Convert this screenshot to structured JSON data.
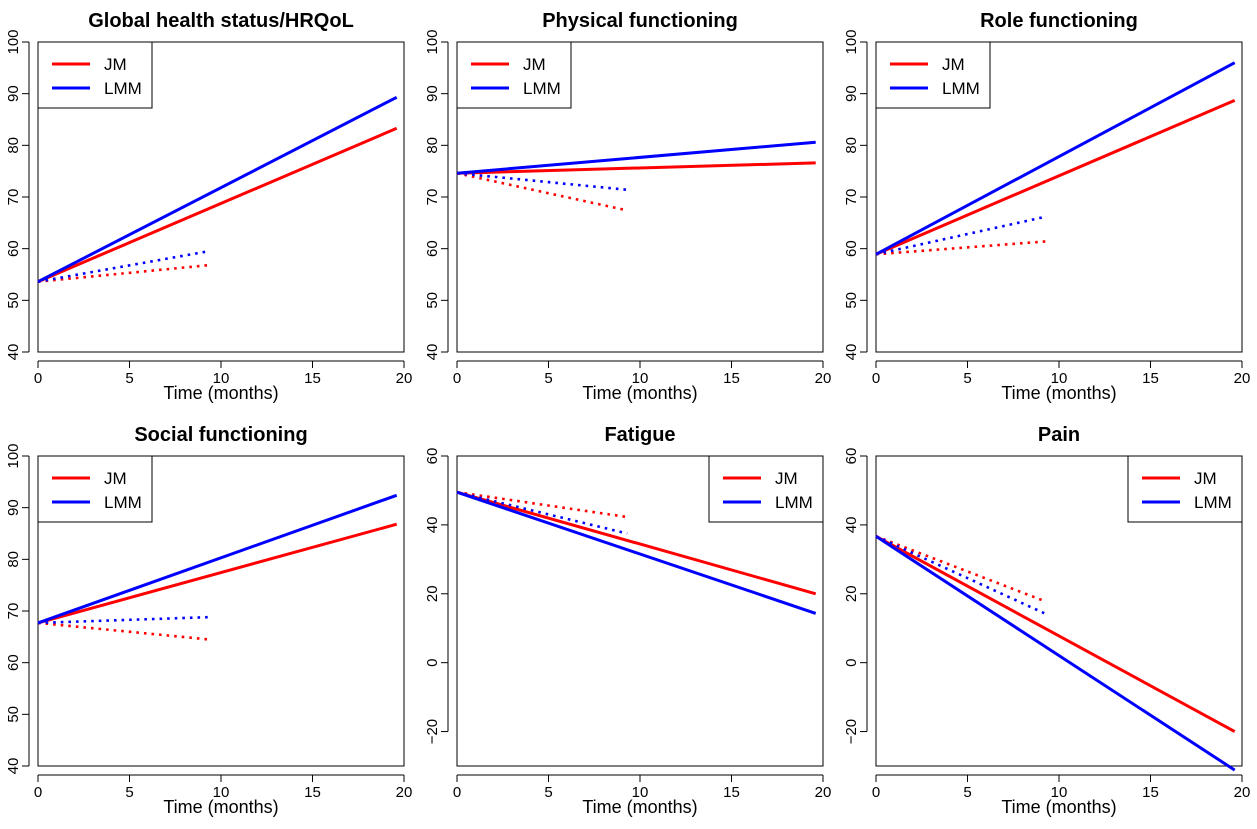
{
  "figure": {
    "colors": {
      "JM": "#ff0000",
      "LMM": "#0000ff"
    }
  },
  "chart_data": [
    {
      "type": "line",
      "title": "Global health status/HRQoL",
      "xlabel": "Time (months)",
      "ylabel": "",
      "xlim": [
        0,
        20
      ],
      "ylim": [
        40,
        100
      ],
      "xticks": [
        "0",
        "5",
        "10",
        "15",
        "20"
      ],
      "yticks": [
        "40",
        "50",
        "60",
        "70",
        "80",
        "90",
        "100"
      ],
      "legend": {
        "position": "top-left",
        "entries": [
          "JM",
          "LMM"
        ]
      },
      "series": [
        {
          "name": "JM",
          "style": "solid",
          "color": "#ff0000",
          "x": [
            0,
            19.6
          ],
          "y": [
            53.6,
            83.3
          ]
        },
        {
          "name": "LMM",
          "style": "solid",
          "color": "#0000ff",
          "x": [
            0,
            19.6
          ],
          "y": [
            53.6,
            89.3
          ]
        },
        {
          "style": "dotted",
          "color": "#ff0000",
          "x": [
            0,
            9.3
          ],
          "y": [
            53.6,
            56.8
          ]
        },
        {
          "style": "dotted",
          "color": "#0000ff",
          "x": [
            0,
            9.3
          ],
          "y": [
            53.6,
            59.5
          ]
        }
      ]
    },
    {
      "type": "line",
      "title": "Physical functioning",
      "xlabel": "Time (months)",
      "ylabel": "",
      "xlim": [
        0,
        20
      ],
      "ylim": [
        40,
        100
      ],
      "xticks": [
        "0",
        "5",
        "10",
        "15",
        "20"
      ],
      "yticks": [
        "40",
        "50",
        "60",
        "70",
        "80",
        "90",
        "100"
      ],
      "legend": {
        "position": "top-left",
        "entries": [
          "JM",
          "LMM"
        ]
      },
      "series": [
        {
          "name": "JM",
          "style": "solid",
          "color": "#ff0000",
          "x": [
            0,
            19.6
          ],
          "y": [
            74.6,
            76.6
          ]
        },
        {
          "name": "LMM",
          "style": "solid",
          "color": "#0000ff",
          "x": [
            0,
            19.6
          ],
          "y": [
            74.6,
            80.6
          ]
        },
        {
          "style": "dotted",
          "color": "#ff0000",
          "x": [
            0,
            9.3
          ],
          "y": [
            74.6,
            67.4
          ]
        },
        {
          "style": "dotted",
          "color": "#0000ff",
          "x": [
            0,
            9.3
          ],
          "y": [
            74.6,
            71.4
          ]
        }
      ]
    },
    {
      "type": "line",
      "title": "Role functioning",
      "xlabel": "Time (months)",
      "ylabel": "",
      "xlim": [
        0,
        20
      ],
      "ylim": [
        40,
        100
      ],
      "xticks": [
        "0",
        "5",
        "10",
        "15",
        "20"
      ],
      "yticks": [
        "40",
        "50",
        "60",
        "70",
        "80",
        "90",
        "100"
      ],
      "legend": {
        "position": "top-left",
        "entries": [
          "JM",
          "LMM"
        ]
      },
      "series": [
        {
          "name": "JM",
          "style": "solid",
          "color": "#ff0000",
          "x": [
            0,
            19.6
          ],
          "y": [
            58.9,
            88.7
          ]
        },
        {
          "name": "LMM",
          "style": "solid",
          "color": "#0000ff",
          "x": [
            0,
            19.6
          ],
          "y": [
            58.9,
            96.0
          ]
        },
        {
          "style": "dotted",
          "color": "#ff0000",
          "x": [
            0,
            9.3
          ],
          "y": [
            58.9,
            61.4
          ]
        },
        {
          "style": "dotted",
          "color": "#0000ff",
          "x": [
            0,
            9.3
          ],
          "y": [
            58.9,
            66.2
          ]
        }
      ]
    },
    {
      "type": "line",
      "title": "Social functioning",
      "xlabel": "Time (months)",
      "ylabel": "",
      "xlim": [
        0,
        20
      ],
      "ylim": [
        40,
        100
      ],
      "xticks": [
        "0",
        "5",
        "10",
        "15",
        "20"
      ],
      "yticks": [
        "40",
        "50",
        "60",
        "70",
        "80",
        "90",
        "100"
      ],
      "legend": {
        "position": "top-left",
        "entries": [
          "JM",
          "LMM"
        ]
      },
      "series": [
        {
          "name": "JM",
          "style": "solid",
          "color": "#ff0000",
          "x": [
            0,
            19.6
          ],
          "y": [
            67.7,
            86.8
          ]
        },
        {
          "name": "LMM",
          "style": "solid",
          "color": "#0000ff",
          "x": [
            0,
            19.6
          ],
          "y": [
            67.7,
            92.4
          ]
        },
        {
          "style": "dotted",
          "color": "#ff0000",
          "x": [
            0,
            9.3
          ],
          "y": [
            67.7,
            64.5
          ]
        },
        {
          "style": "dotted",
          "color": "#0000ff",
          "x": [
            0,
            9.3
          ],
          "y": [
            67.7,
            68.8
          ]
        }
      ]
    },
    {
      "type": "line",
      "title": "Fatigue",
      "xlabel": "Time (months)",
      "ylabel": "",
      "xlim": [
        0,
        20
      ],
      "ylim": [
        -30,
        60
      ],
      "xticks": [
        "0",
        "5",
        "10",
        "15",
        "20"
      ],
      "yticks": [
        "−20",
        "0",
        "20",
        "40",
        "60"
      ],
      "legend": {
        "position": "top-right",
        "entries": [
          "JM",
          "LMM"
        ]
      },
      "series": [
        {
          "name": "JM",
          "style": "solid",
          "color": "#ff0000",
          "x": [
            0,
            19.6
          ],
          "y": [
            49.5,
            20.0
          ]
        },
        {
          "name": "LMM",
          "style": "solid",
          "color": "#0000ff",
          "x": [
            0,
            19.6
          ],
          "y": [
            49.5,
            14.3
          ]
        },
        {
          "style": "dotted",
          "color": "#ff0000",
          "x": [
            0,
            9.3
          ],
          "y": [
            49.5,
            42.3
          ]
        },
        {
          "style": "dotted",
          "color": "#0000ff",
          "x": [
            0,
            9.3
          ],
          "y": [
            49.5,
            37.5
          ]
        }
      ]
    },
    {
      "type": "line",
      "title": "Pain",
      "xlabel": "Time (months)",
      "ylabel": "",
      "xlim": [
        0,
        20
      ],
      "ylim": [
        -30,
        60
      ],
      "xticks": [
        "0",
        "5",
        "10",
        "15",
        "20"
      ],
      "yticks": [
        "−20",
        "0",
        "20",
        "40",
        "60"
      ],
      "legend": {
        "position": "top-right",
        "entries": [
          "JM",
          "LMM"
        ]
      },
      "series": [
        {
          "name": "JM",
          "style": "solid",
          "color": "#ff0000",
          "x": [
            0,
            19.6
          ],
          "y": [
            36.7,
            -20.0
          ]
        },
        {
          "name": "LMM",
          "style": "solid",
          "color": "#0000ff",
          "x": [
            0,
            19.6
          ],
          "y": [
            36.7,
            -31.2
          ]
        },
        {
          "style": "dotted",
          "color": "#ff0000",
          "x": [
            0,
            9.3
          ],
          "y": [
            36.7,
            17.7
          ]
        },
        {
          "style": "dotted",
          "color": "#0000ff",
          "x": [
            0,
            9.3
          ],
          "y": [
            36.7,
            14.1
          ]
        }
      ]
    }
  ]
}
